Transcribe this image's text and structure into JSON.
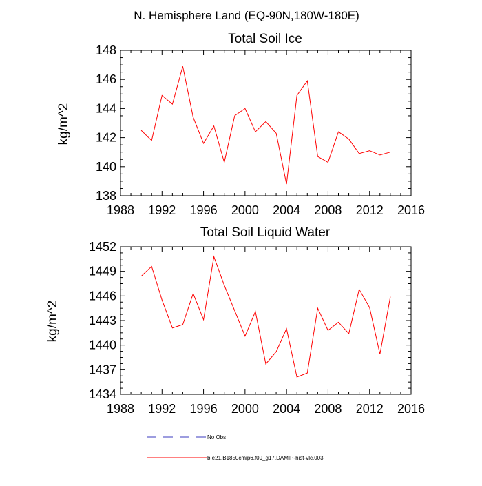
{
  "page_title": "N. Hemisphere Land (EQ-90N,180W-180E)",
  "colors": {
    "series": "#ff0000",
    "no_obs": "#3b3bbf",
    "axis": "#000000"
  },
  "legend": {
    "no_obs": "No Obs",
    "model": "b.e21.B1850cmip6.f09_g17.DAMIP-hist-vlc.003"
  },
  "chart_data": [
    {
      "type": "line",
      "title": "Total Soil Ice",
      "xlabel": "",
      "ylabel": "kg/m^2",
      "xlim": [
        1988,
        2016
      ],
      "ylim": [
        138,
        148
      ],
      "xticks": [
        1988,
        1992,
        1996,
        2000,
        2004,
        2008,
        2012,
        2016
      ],
      "yticks": [
        138,
        140,
        142,
        144,
        146,
        148
      ],
      "xtick_labels": [
        "1988",
        "1992",
        "1996",
        "2000",
        "2004",
        "2008",
        "2012",
        "2016"
      ],
      "ytick_labels": [
        "138",
        "140",
        "142",
        "144",
        "146",
        "148"
      ],
      "series": [
        {
          "name": "b.e21.B1850cmip6.f09_g17.DAMIP-hist-vlc.003",
          "x": [
            1990,
            1991,
            1992,
            1993,
            1994,
            1995,
            1996,
            1997,
            1998,
            1999,
            2000,
            2001,
            2002,
            2003,
            2004,
            2005,
            2006,
            2007,
            2008,
            2009,
            2010,
            2011,
            2012,
            2013,
            2014
          ],
          "values": [
            142.5,
            141.8,
            144.9,
            144.3,
            146.9,
            143.4,
            141.6,
            142.8,
            140.3,
            143.5,
            144.0,
            142.4,
            143.1,
            142.3,
            138.8,
            144.9,
            145.9,
            140.7,
            140.3,
            142.4,
            141.9,
            140.9,
            141.1,
            140.8,
            141.0
          ]
        }
      ]
    },
    {
      "type": "line",
      "title": "Total Soil Liquid Water",
      "xlabel": "",
      "ylabel": "kg/m^2",
      "xlim": [
        1988,
        2016
      ],
      "ylim": [
        1434,
        1452
      ],
      "xticks": [
        1988,
        1992,
        1996,
        2000,
        2004,
        2008,
        2012,
        2016
      ],
      "yticks": [
        1434,
        1437,
        1440,
        1443,
        1446,
        1449,
        1452
      ],
      "xtick_labels": [
        "1988",
        "1992",
        "1996",
        "2000",
        "2004",
        "2008",
        "2012",
        "2016"
      ],
      "ytick_labels": [
        "1434",
        "1437",
        "1440",
        "1443",
        "1446",
        "1449",
        "1452"
      ],
      "series": [
        {
          "name": "b.e21.B1850cmip6.f09_g17.DAMIP-hist-vlc.003",
          "x": [
            1990,
            1991,
            1992,
            1993,
            1994,
            1995,
            1996,
            1997,
            1998,
            1999,
            2000,
            2001,
            2002,
            2003,
            2004,
            2005,
            2006,
            2007,
            2008,
            2009,
            2010,
            2011,
            2012,
            2013,
            2014
          ],
          "values": [
            1448.4,
            1449.6,
            1445.5,
            1442.1,
            1442.5,
            1446.3,
            1443.1,
            1450.8,
            1447.3,
            1444.2,
            1441.1,
            1444.1,
            1437.7,
            1439.2,
            1442.0,
            1436.1,
            1436.6,
            1444.5,
            1441.8,
            1442.8,
            1441.4,
            1446.8,
            1444.6,
            1438.9,
            1445.9
          ]
        }
      ]
    }
  ]
}
